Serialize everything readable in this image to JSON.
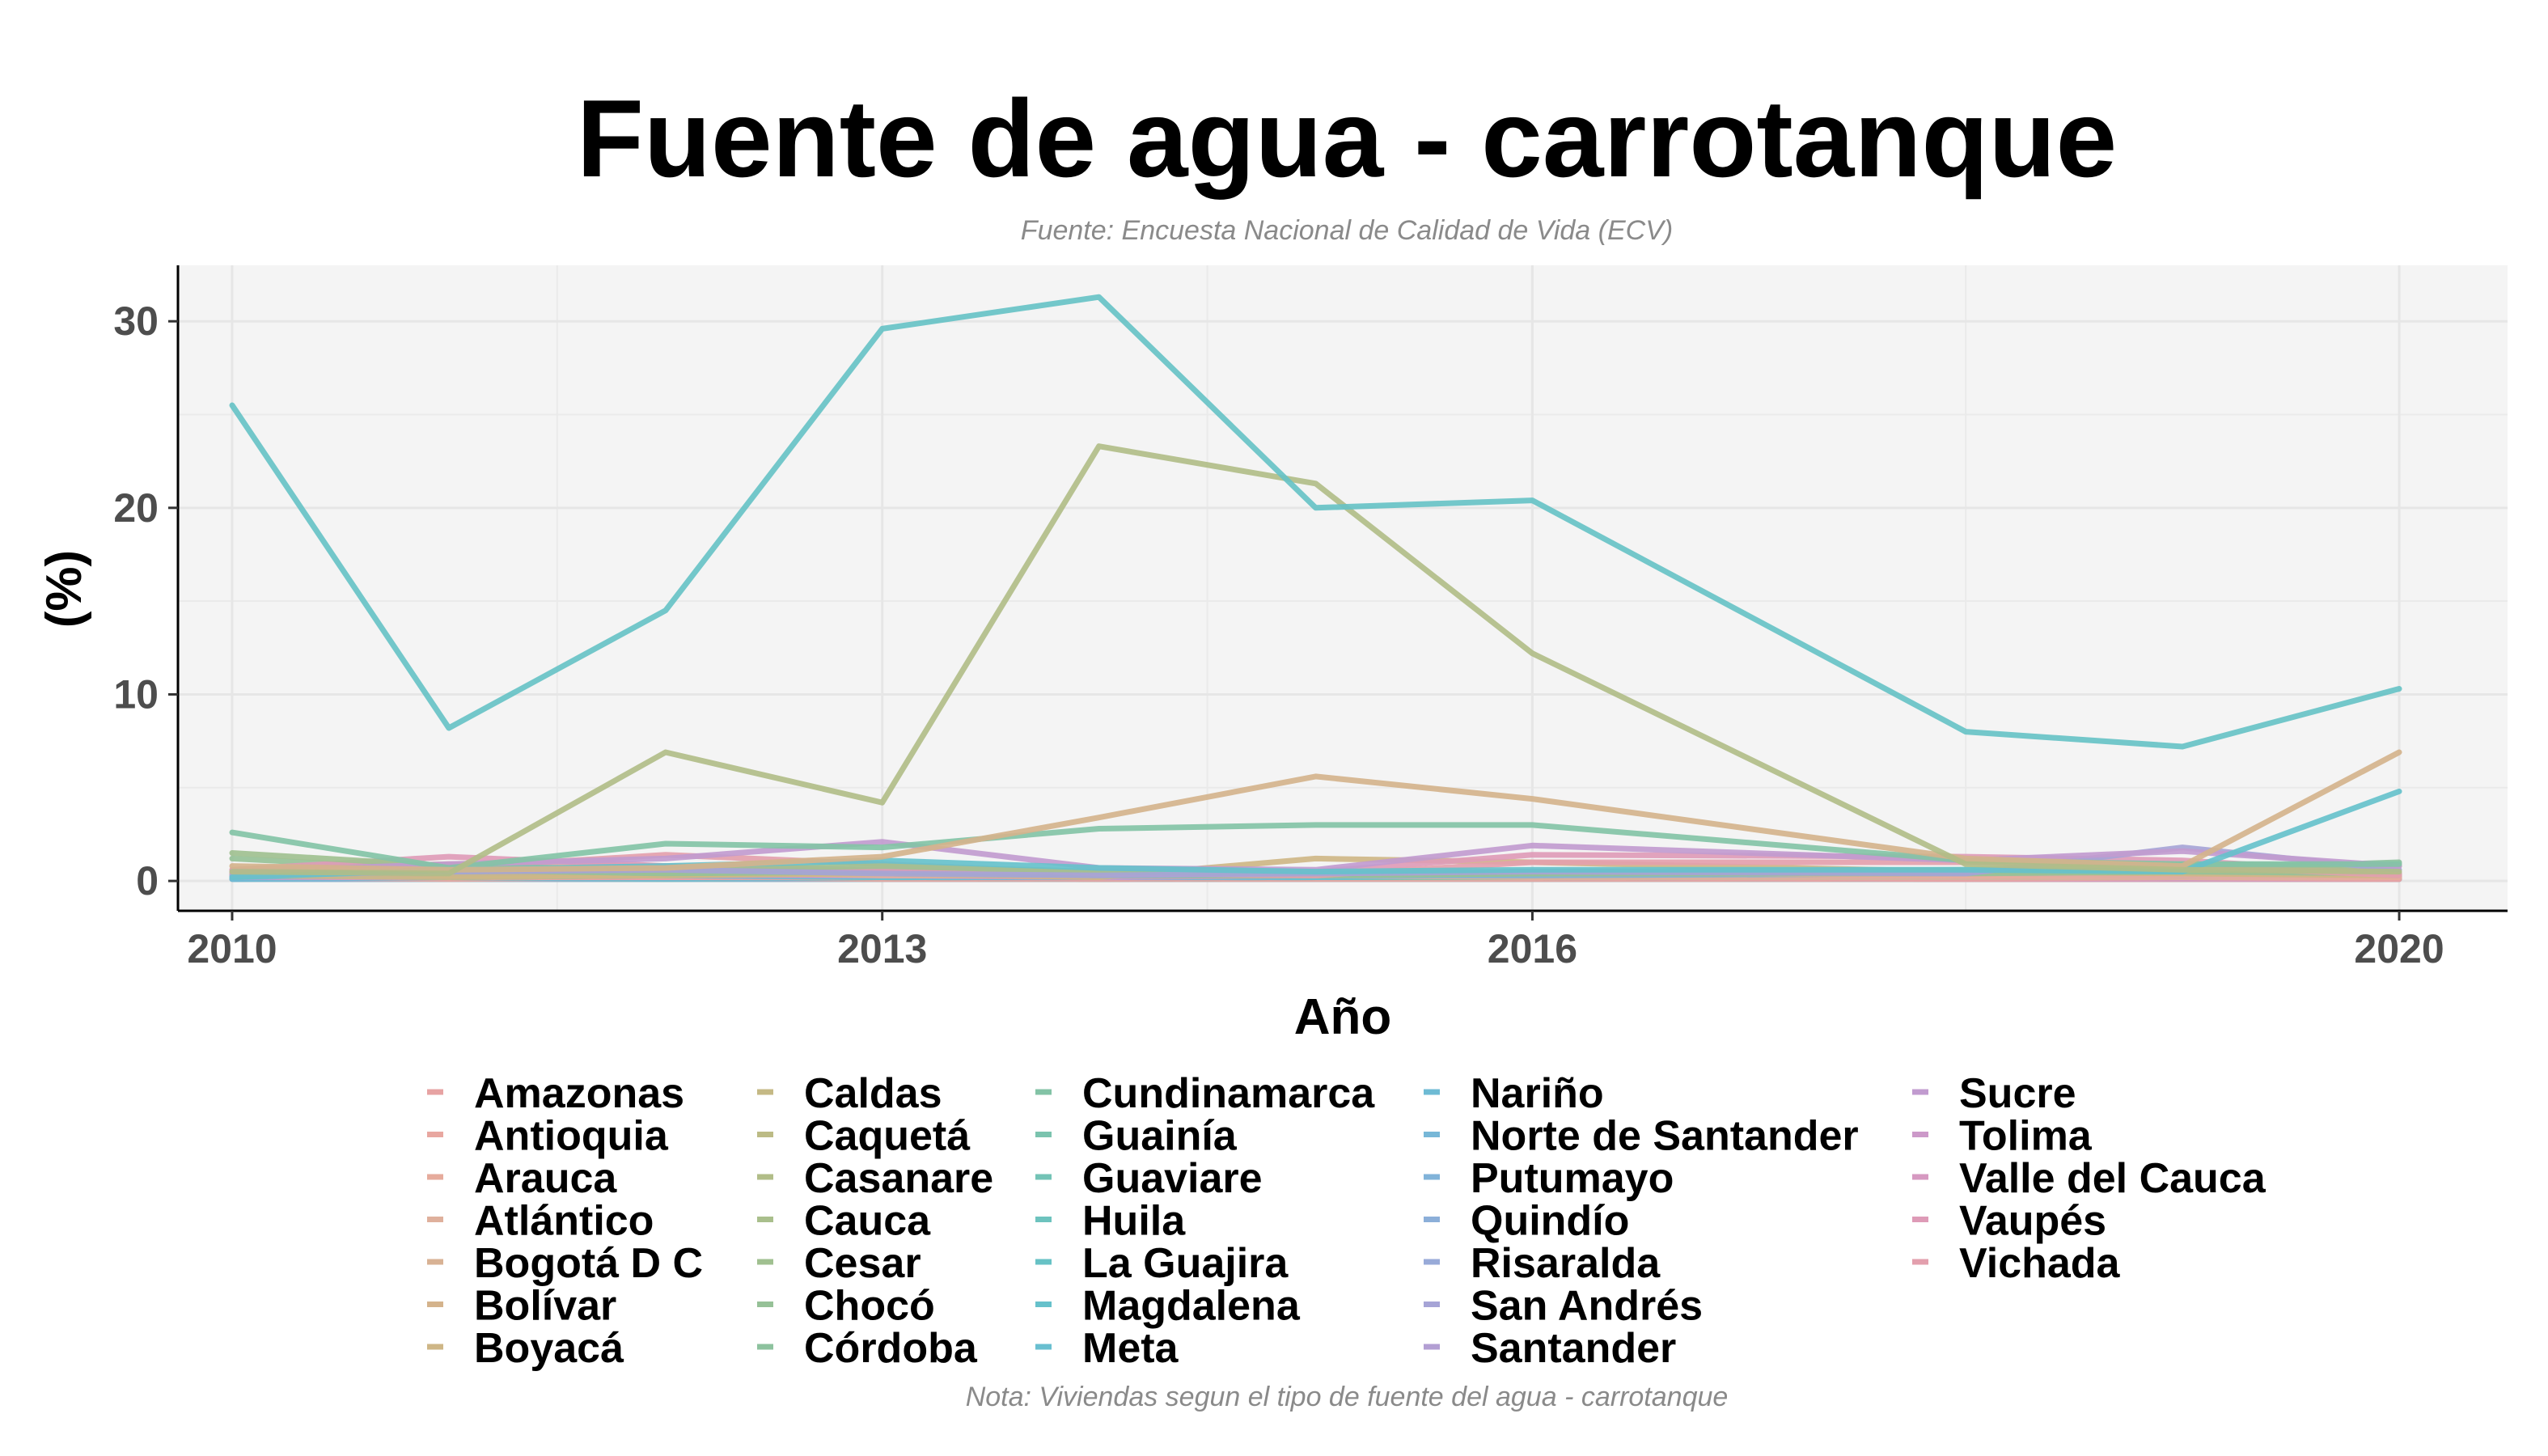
{
  "chart_data": {
    "type": "line",
    "title": "Fuente de agua - carrotanque",
    "subtitle": "Fuente: Encuesta Nacional de Calidad de Vida (ECV)",
    "caption": "Nota: Viviendas segun el tipo de fuente del agua - carrotanque",
    "xlabel": "Año",
    "ylabel": "(%)",
    "xlim": [
      2009.75,
      2020.5
    ],
    "ylim": [
      -1.6,
      33
    ],
    "x_ticks": [
      2010,
      2013,
      2016,
      2020
    ],
    "y_ticks": [
      0,
      10,
      20,
      30
    ],
    "grid": true,
    "legend_position": "bottom",
    "x": [
      2010,
      2011,
      2012,
      2013,
      2014,
      2015,
      2016,
      2018,
      2019,
      2020
    ],
    "series": [
      {
        "name": "Amazonas",
        "color": "#e7a3a3",
        "values": [
          0.3,
          0.2,
          0.2,
          0.2,
          0.1,
          0.2,
          0.2,
          0.1,
          0.2,
          0.1
        ]
      },
      {
        "name": "Antioquia",
        "color": "#e8a7a0",
        "values": [
          0.2,
          0.1,
          0.2,
          0.1,
          0.1,
          0.1,
          0.1,
          0.1,
          0.1,
          0.1
        ]
      },
      {
        "name": "Arauca",
        "color": "#e6ab9c",
        "values": [
          0.6,
          0.9,
          0.8,
          0.4,
          0.3,
          0.4,
          0.5,
          0.3,
          0.3,
          0.2
        ]
      },
      {
        "name": "Atlántico",
        "color": "#dfb09c",
        "values": [
          0.4,
          0.4,
          0.5,
          0.3,
          0.3,
          0.3,
          0.2,
          0.2,
          0.2,
          0.2
        ]
      },
      {
        "name": "Bogotá D C",
        "color": "#d8b294",
        "values": [
          0.1,
          0.1,
          0.1,
          0.1,
          0.1,
          0.1,
          0.1,
          0.1,
          0.1,
          0.1
        ]
      },
      {
        "name": "Bolívar",
        "color": "#d4b38c",
        "values": [
          0.8,
          0.6,
          0.7,
          1.3,
          3.4,
          5.6,
          4.4,
          1.2,
          0.8,
          6.9
        ]
      },
      {
        "name": "Boyacá",
        "color": "#ceb686",
        "values": [
          0.3,
          0.2,
          0.3,
          0.4,
          0.2,
          1.2,
          1.0,
          0.5,
          0.4,
          0.3
        ]
      },
      {
        "name": "Caldas",
        "color": "#c5b985",
        "values": [
          0.2,
          0.2,
          0.1,
          0.2,
          0.1,
          0.2,
          0.2,
          0.1,
          0.1,
          0.1
        ]
      },
      {
        "name": "Caquetá",
        "color": "#bcbb85",
        "values": [
          0.4,
          0.3,
          0.3,
          0.5,
          0.4,
          0.3,
          0.3,
          0.4,
          0.3,
          0.3
        ]
      },
      {
        "name": "Casanare",
        "color": "#b1bd88",
        "values": [
          0.5,
          0.4,
          6.9,
          4.2,
          23.3,
          21.3,
          12.2,
          0.9,
          0.6,
          0.5
        ]
      },
      {
        "name": "Cauca",
        "color": "#a9bf8c",
        "values": [
          0.2,
          0.2,
          0.2,
          0.2,
          0.1,
          0.2,
          0.2,
          0.2,
          0.1,
          0.2
        ]
      },
      {
        "name": "Cesar",
        "color": "#a0c090",
        "values": [
          1.5,
          0.8,
          0.6,
          0.8,
          0.5,
          0.4,
          0.5,
          0.6,
          0.9,
          0.8
        ]
      },
      {
        "name": "Chocó",
        "color": "#96c197",
        "values": [
          1.2,
          0.6,
          0.4,
          0.5,
          0.3,
          0.3,
          0.4,
          0.4,
          0.5,
          0.4
        ]
      },
      {
        "name": "Córdoba",
        "color": "#8dc29e",
        "values": [
          0.4,
          0.5,
          0.5,
          0.4,
          0.3,
          0.3,
          0.4,
          0.5,
          0.6,
          1.0
        ]
      },
      {
        "name": "Cundinamarca",
        "color": "#83c3a6",
        "values": [
          2.6,
          0.7,
          2.0,
          1.8,
          2.8,
          3.0,
          3.0,
          1.1,
          0.9,
          0.9
        ]
      },
      {
        "name": "Guainía",
        "color": "#7bc3ae",
        "values": [
          0.3,
          0.2,
          0.3,
          0.2,
          0.2,
          0.2,
          0.2,
          0.2,
          0.2,
          0.2
        ]
      },
      {
        "name": "Guaviare",
        "color": "#73c3b6",
        "values": [
          0.2,
          0.2,
          0.2,
          0.2,
          0.2,
          0.2,
          0.2,
          0.2,
          0.2,
          0.2
        ]
      },
      {
        "name": "Huila",
        "color": "#6dc3be",
        "values": [
          0.1,
          0.1,
          0.1,
          0.1,
          0.1,
          0.1,
          0.1,
          0.1,
          0.1,
          0.1
        ]
      },
      {
        "name": "La Guajira",
        "color": "#67c2c5",
        "values": [
          25.5,
          8.2,
          14.5,
          29.6,
          31.3,
          20.0,
          20.4,
          8.0,
          7.2,
          10.3
        ]
      },
      {
        "name": "Magdalena",
        "color": "#66c1cb",
        "values": [
          0.2,
          0.6,
          0.8,
          1.1,
          0.7,
          0.5,
          0.6,
          0.6,
          0.5,
          4.8
        ]
      },
      {
        "name": "Meta",
        "color": "#69bfd0",
        "values": [
          0.3,
          0.2,
          0.3,
          0.2,
          0.2,
          0.2,
          0.3,
          0.3,
          0.2,
          0.2
        ]
      },
      {
        "name": "Nariño",
        "color": "#6ebbd4",
        "values": [
          0.1,
          0.2,
          0.1,
          0.2,
          0.1,
          0.2,
          0.2,
          0.1,
          0.2,
          0.1
        ]
      },
      {
        "name": "Norte de Santander",
        "color": "#77b7d7",
        "values": [
          0.2,
          0.3,
          0.4,
          0.3,
          0.2,
          0.3,
          0.3,
          0.2,
          0.3,
          0.2
        ]
      },
      {
        "name": "Putumayo",
        "color": "#81b3d9",
        "values": [
          0.2,
          0.4,
          0.5,
          0.4,
          0.3,
          0.3,
          0.3,
          0.4,
          0.3,
          0.3
        ]
      },
      {
        "name": "Quindío",
        "color": "#8cafd9",
        "values": [
          0.1,
          0.1,
          0.1,
          0.1,
          0.1,
          0.1,
          0.1,
          0.1,
          0.1,
          0.1
        ]
      },
      {
        "name": "Risaralda",
        "color": "#98aad8",
        "values": [
          0.2,
          0.2,
          0.2,
          0.2,
          0.2,
          0.2,
          0.2,
          0.2,
          0.2,
          0.2
        ]
      },
      {
        "name": "San Andrés",
        "color": "#a6a4d6",
        "values": [
          0.3,
          0.5,
          0.6,
          0.4,
          0.3,
          0.4,
          0.5,
          0.4,
          1.8,
          0.6
        ]
      },
      {
        "name": "Santander",
        "color": "#b39fd3",
        "values": [
          0.2,
          0.3,
          0.3,
          0.3,
          0.2,
          0.3,
          0.4,
          0.3,
          0.3,
          0.3
        ]
      },
      {
        "name": "Sucre",
        "color": "#c19bcf",
        "values": [
          0.5,
          0.9,
          1.2,
          2.1,
          0.7,
          0.6,
          1.9,
          1.1,
          1.6,
          0.8
        ]
      },
      {
        "name": "Tolima",
        "color": "#cc99c9",
        "values": [
          0.3,
          0.4,
          0.4,
          0.3,
          0.2,
          0.3,
          0.3,
          0.3,
          0.2,
          0.2
        ]
      },
      {
        "name": "Valle del Cauca",
        "color": "#d699c1",
        "values": [
          0.2,
          0.2,
          0.2,
          0.2,
          0.2,
          0.2,
          0.2,
          0.1,
          0.1,
          0.1
        ]
      },
      {
        "name": "Vaupés",
        "color": "#de9bb7",
        "values": [
          0.6,
          1.3,
          0.8,
          0.6,
          0.5,
          0.5,
          1.4,
          1.3,
          1.1,
          0.4
        ]
      },
      {
        "name": "Vichada",
        "color": "#e39fad",
        "values": [
          0.4,
          0.7,
          1.4,
          0.9,
          0.4,
          0.3,
          1.0,
          1.0,
          0.8,
          0.3
        ]
      }
    ]
  }
}
